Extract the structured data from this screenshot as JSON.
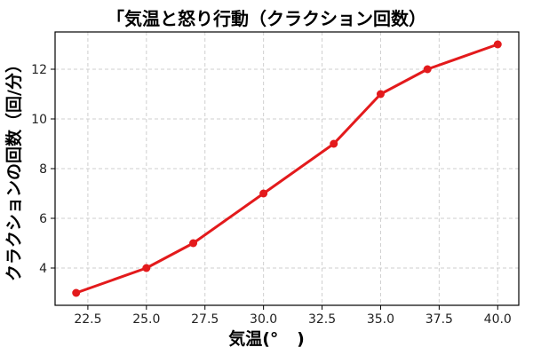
{
  "chart_data": {
    "type": "line",
    "title": "「気温と怒り行動（クラクション回数）",
    "xlabel": "気温(°",
    "xlabel_closing": ")",
    "ylabel": "クラクションの回数（回/分）",
    "x": [
      22,
      25,
      27,
      30,
      33,
      35,
      37,
      40
    ],
    "series": [
      {
        "values": [
          3,
          4,
          5,
          7,
          9,
          11,
          12,
          13
        ],
        "color": "#e31a1c"
      }
    ],
    "xlim": [
      21.1,
      40.9
    ],
    "ylim": [
      2.5,
      13.5
    ],
    "xticks": [
      22.5,
      25.0,
      27.5,
      30.0,
      32.5,
      35.0,
      37.5,
      40.0
    ],
    "yticks": [
      4,
      6,
      8,
      10,
      12
    ],
    "xtick_labels": [
      "22.5",
      "25.0",
      "27.5",
      "30.0",
      "32.5",
      "35.0",
      "37.5",
      "40.0"
    ],
    "ytick_labels": [
      "4",
      "6",
      "8",
      "10",
      "12"
    ],
    "grid": true,
    "marker": "circle"
  }
}
